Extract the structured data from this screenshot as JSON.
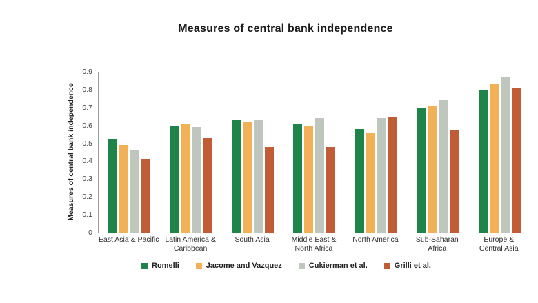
{
  "title": "Measures of central bank independence",
  "chart_data": {
    "type": "bar",
    "title": "Measures of central bank independence",
    "xlabel": "",
    "ylabel": "Measures of central bank independence",
    "ylim": [
      0,
      0.9
    ],
    "ytick_labels": [
      "0",
      "0.1",
      "0.2",
      "0.3",
      "0.4",
      "0.5",
      "0.6",
      "0.7",
      "0.8",
      "0.9"
    ],
    "ytick_values": [
      0,
      0.1,
      0.2,
      0.3,
      0.4,
      0.5,
      0.6,
      0.7,
      0.8,
      0.9
    ],
    "grid": false,
    "legend_position": "bottom",
    "categories": [
      "East Asia & Pacific",
      "Latin America & Caribbean",
      "South Asia",
      "Middle East & North Africa",
      "North America",
      "Sub-Saharan Africa",
      "Europe & Central Asia"
    ],
    "category_label_lines": [
      [
        "East Asia & Pacific"
      ],
      [
        "Latin America &",
        "Caribbean"
      ],
      [
        "South Asia"
      ],
      [
        "Middle East &",
        "North Africa"
      ],
      [
        "North America"
      ],
      [
        "Sub-Saharan",
        "Africa"
      ],
      [
        "Europe &",
        "Central Asia"
      ]
    ],
    "series": [
      {
        "name": "Romelli",
        "color": "#1e8449",
        "values": [
          0.52,
          0.6,
          0.63,
          0.61,
          0.58,
          0.7,
          0.8
        ]
      },
      {
        "name": "Jacome and Vazquez",
        "color": "#f2b157",
        "values": [
          0.49,
          0.61,
          0.62,
          0.6,
          0.56,
          0.71,
          0.83
        ]
      },
      {
        "name": "Cukierman et al.",
        "color": "#bfc6bd",
        "values": [
          0.46,
          0.59,
          0.63,
          0.64,
          0.64,
          0.74,
          0.87
        ]
      },
      {
        "name": "Grilli et al.",
        "color": "#c05c36",
        "values": [
          0.41,
          0.53,
          0.48,
          0.48,
          0.65,
          0.57,
          0.81
        ]
      }
    ]
  },
  "colors": {
    "axis": "#9b9b9b",
    "title_text": "#1a1a1a",
    "tick_text": "#3c3c3c"
  }
}
